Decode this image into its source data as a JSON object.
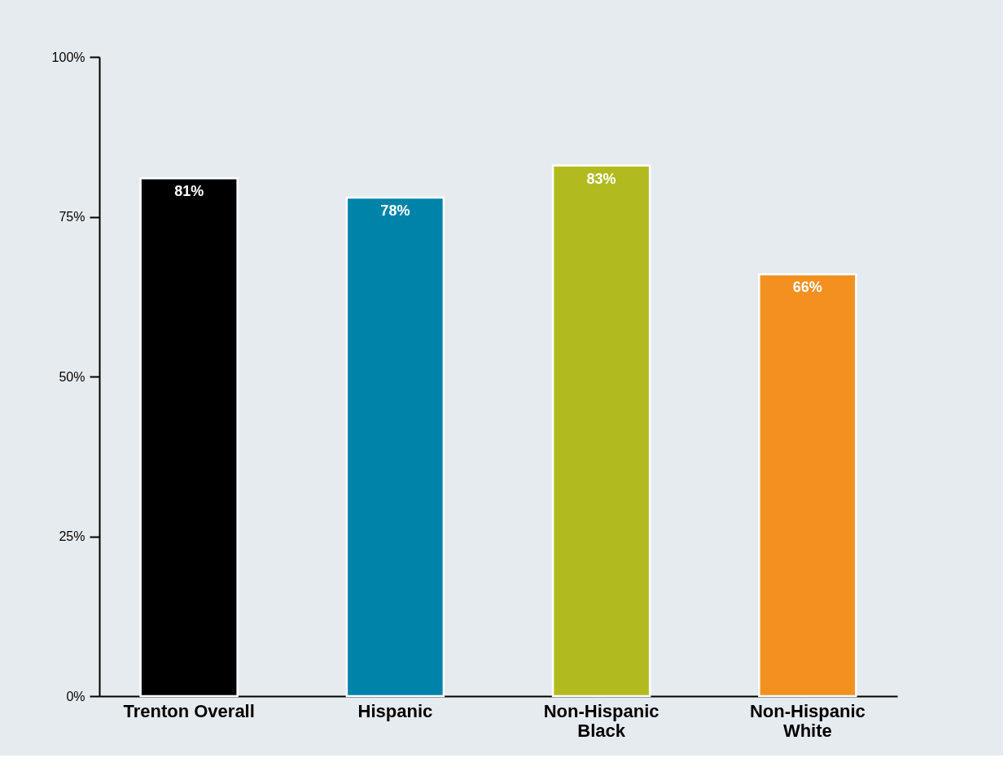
{
  "chart_data": {
    "type": "bar",
    "categories": [
      "Trenton Overall",
      "Hispanic",
      "Non-Hispanic\nBlack",
      "Non-Hispanic\nWhite"
    ],
    "values": [
      81,
      78,
      83,
      66
    ],
    "colors": [
      "#000000",
      "#0083a9",
      "#b2bb1e",
      "#f39120"
    ],
    "value_labels": [
      "81%",
      "78%",
      "83%",
      "66%"
    ],
    "ylim": [
      0,
      100
    ],
    "yticks": [
      {
        "value": 0,
        "label": "0%"
      },
      {
        "value": 25,
        "label": "25%"
      },
      {
        "value": 50,
        "label": "50%"
      },
      {
        "value": 75,
        "label": "75%"
      },
      {
        "value": 100,
        "label": "100%"
      }
    ],
    "grid": false
  }
}
